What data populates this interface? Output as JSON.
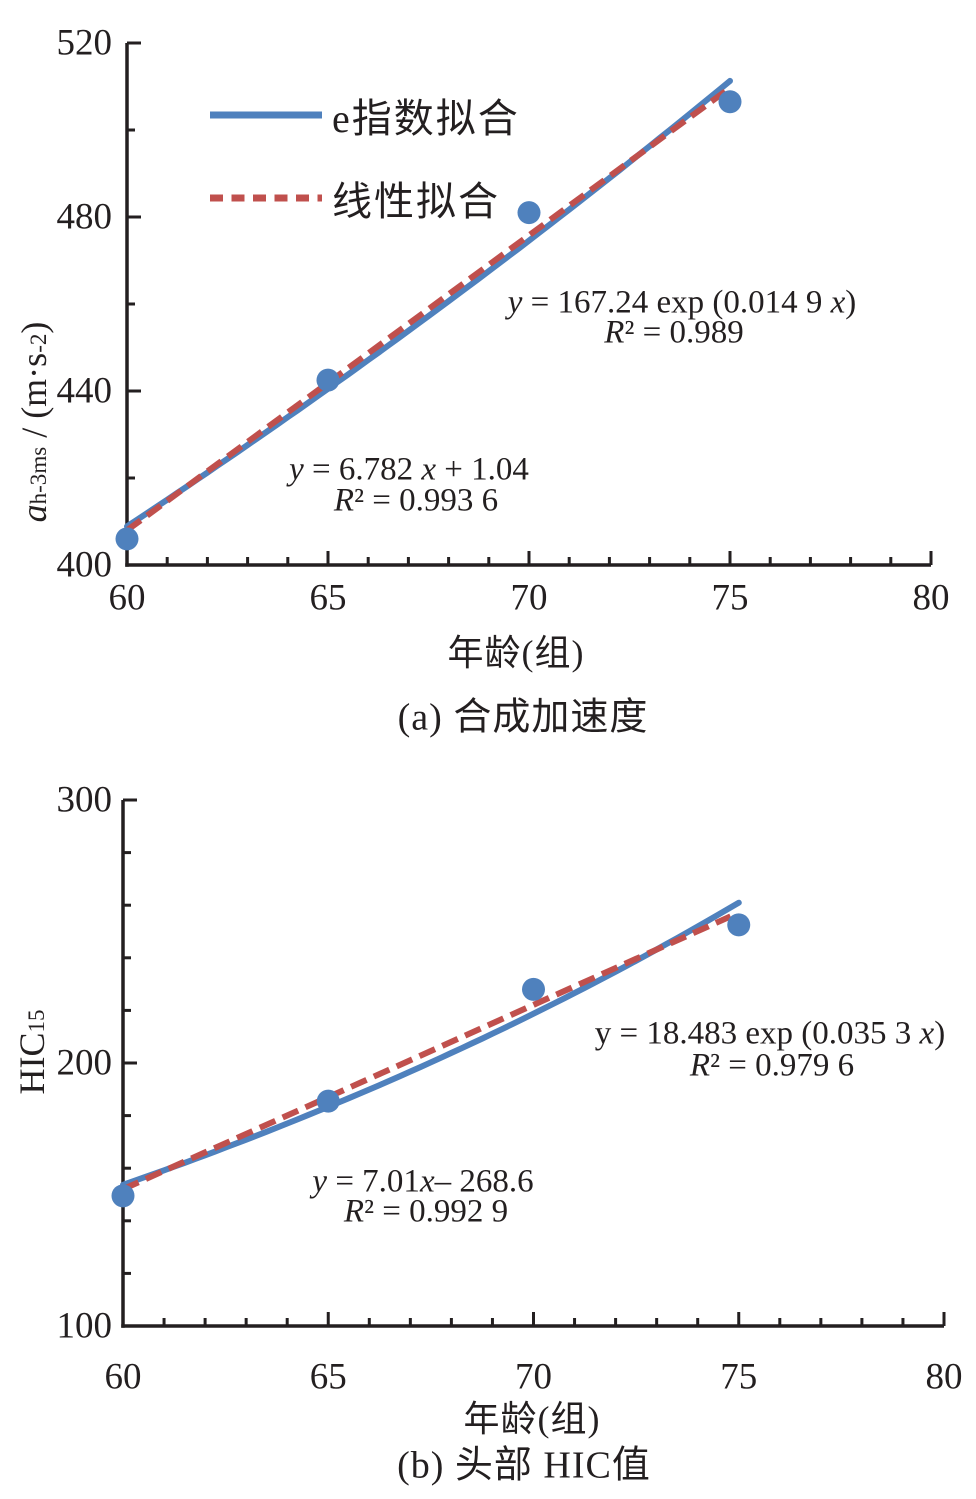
{
  "colors": {
    "axis": "#231f20",
    "text": "#231f20",
    "exp_fit_blue": "#4f81bd",
    "lin_fit_red": "#c0504d",
    "marker_blue": "#4f81bd"
  },
  "legend": {
    "items": [
      {
        "label": "e指数拟合",
        "style": "solid"
      },
      {
        "label": "线性拟合",
        "style": "dashed"
      }
    ]
  },
  "chart_data": [
    {
      "id": "a",
      "type": "scatter",
      "caption": "(a)  合成加速度",
      "xlabel": "年龄(组)",
      "ylabel_text": "a h-3ms / (m·s-2)",
      "ylabel_segments": [
        [
          "i",
          "a"
        ],
        [
          "sub",
          "h-3ms"
        ],
        [
          "n",
          " / (m·s"
        ],
        [
          "sup",
          "-2"
        ],
        [
          "n",
          ")"
        ]
      ],
      "xlim": [
        60,
        80
      ],
      "ylim": [
        400,
        520
      ],
      "x_major_ticks": [
        60,
        65,
        70,
        75,
        80
      ],
      "x_minor_step": 1,
      "y_major_ticks": [
        400,
        440,
        480,
        520
      ],
      "y_minor_step": 20,
      "grid": false,
      "legend_visible": true,
      "points_x": [
        60,
        65,
        70,
        75
      ],
      "points_y": [
        406,
        442.5,
        481,
        506.5
      ],
      "fits": [
        {
          "kind": "exp",
          "label": "e指数拟合",
          "a": 167.24,
          "b": 0.0149,
          "x_start": 60,
          "x_end": 75.2,
          "equation": "y = 167.24 exp (0.014 9 x)",
          "r2": "R² = 0.989"
        },
        {
          "kind": "linear",
          "label": "线性拟合",
          "m": 6.782,
          "c": 1.04,
          "x_start": 60,
          "x_end": 74.9,
          "equation": "y = 6.782 x + 1.04",
          "r2": "R² = 0.993 6"
        }
      ],
      "annotations": [
        {
          "name": "exp-fit-equation",
          "line1": [
            [
              "i",
              "y"
            ],
            [
              "n",
              " = 167.24 exp (0.014 9 "
            ],
            [
              "i",
              "x"
            ],
            [
              "n",
              ")"
            ]
          ],
          "line2": [
            [
              "i",
              "R"
            ],
            [
              "n",
              "² = 0.989"
            ]
          ]
        },
        {
          "name": "linear-fit-equation",
          "line1": [
            [
              "i",
              "y"
            ],
            [
              "n",
              " = 6.782 "
            ],
            [
              "i",
              "x"
            ],
            [
              "n",
              " + 1.04"
            ]
          ],
          "line2": [
            [
              "i",
              "R"
            ],
            [
              "n",
              "² = 0.993 6"
            ]
          ]
        }
      ]
    },
    {
      "id": "b",
      "type": "scatter",
      "caption": "(b)  头部 HIC值",
      "xlabel": "年龄(组)",
      "ylabel_text": "HIC15",
      "ylabel_segments": [
        [
          "n",
          "HIC"
        ],
        [
          "sub",
          "15"
        ]
      ],
      "xlim": [
        60,
        80
      ],
      "ylim": [
        100,
        300
      ],
      "x_major_ticks": [
        60,
        65,
        70,
        75,
        80
      ],
      "x_minor_step": 1,
      "y_major_ticks": [
        100,
        200,
        300
      ],
      "y_minor_step": 20,
      "grid": false,
      "legend_visible": false,
      "points_x": [
        60,
        65,
        70,
        75
      ],
      "points_y": [
        149.5,
        185.5,
        228,
        252.5
      ],
      "fits": [
        {
          "kind": "exp",
          "label": "e指数拟合",
          "a": 18.483,
          "b": 0.0353,
          "x_start": 60,
          "x_end": 75.1,
          "equation": "y = 18.483 exp (0.035 3 x)",
          "r2": "R² = 0.979 6"
        },
        {
          "kind": "linear",
          "label": "线性拟合",
          "m": 7.01,
          "c": -268.6,
          "x_start": 60,
          "x_end": 74.8,
          "equation": "y = 7.01x– 268.6",
          "r2": "R² = 0.992 9"
        }
      ],
      "annotations": [
        {
          "name": "exp-fit-equation",
          "line1": [
            [
              "n",
              "y = 18.483 exp (0.035 3 "
            ],
            [
              "i",
              "x"
            ],
            [
              "n",
              ")"
            ]
          ],
          "line2": [
            [
              "i",
              "R"
            ],
            [
              "n",
              "² = 0.979 6"
            ]
          ]
        },
        {
          "name": "linear-fit-equation",
          "line1": [
            [
              "i",
              "y"
            ],
            [
              "n",
              " = 7.01"
            ],
            [
              "i",
              "x"
            ],
            [
              "n",
              "– 268.6"
            ]
          ],
          "line2": [
            [
              "i",
              "R"
            ],
            [
              "n",
              "² = 0.992 9"
            ]
          ]
        }
      ]
    }
  ]
}
